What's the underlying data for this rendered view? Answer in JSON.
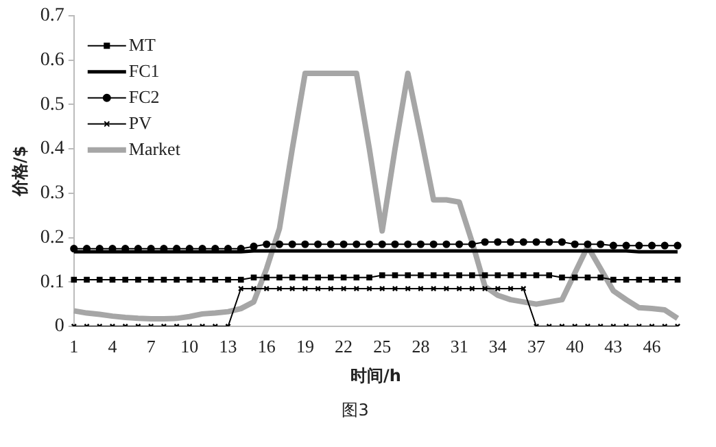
{
  "chart_data": {
    "type": "line",
    "xlabel": "时间/h",
    "ylabel": "价格/$",
    "annotations": [
      "图3"
    ],
    "categories": [
      "1",
      null,
      null,
      "4",
      null,
      null,
      "7",
      null,
      null,
      "10",
      null,
      null,
      "13",
      null,
      null,
      "16",
      null,
      null,
      "19",
      null,
      null,
      "22",
      null,
      null,
      "25",
      null,
      null,
      "28",
      null,
      null,
      "31",
      null,
      null,
      "34",
      null,
      null,
      "37",
      null,
      null,
      "40",
      null,
      null,
      "43",
      null,
      null,
      "46",
      null,
      null
    ],
    "ylim": [
      0,
      0.7
    ],
    "yticks": [
      0,
      0.1,
      0.2,
      0.3,
      0.4,
      0.5,
      0.6,
      0.7
    ],
    "grid": false,
    "legend": "top left",
    "series": [
      {
        "name": "MT",
        "color": "#000000",
        "marker": "square",
        "values": [
          0.105,
          0.105,
          0.105,
          0.105,
          0.105,
          0.105,
          0.105,
          0.105,
          0.105,
          0.105,
          0.105,
          0.105,
          0.105,
          0.105,
          0.11,
          0.11,
          0.11,
          0.11,
          0.11,
          0.11,
          0.11,
          0.11,
          0.11,
          0.11,
          0.115,
          0.115,
          0.115,
          0.115,
          0.115,
          0.115,
          0.115,
          0.115,
          0.115,
          0.115,
          0.115,
          0.115,
          0.115,
          0.115,
          0.11,
          0.11,
          0.11,
          0.11,
          0.105,
          0.105,
          0.105,
          0.105,
          0.105,
          0.105
        ]
      },
      {
        "name": "FC1",
        "color": "#000000",
        "marker": "none",
        "values": [
          0.168,
          0.168,
          0.168,
          0.168,
          0.168,
          0.168,
          0.168,
          0.168,
          0.168,
          0.168,
          0.168,
          0.168,
          0.168,
          0.168,
          0.17,
          0.17,
          0.17,
          0.17,
          0.17,
          0.17,
          0.17,
          0.17,
          0.17,
          0.17,
          0.17,
          0.17,
          0.17,
          0.17,
          0.17,
          0.17,
          0.17,
          0.17,
          0.17,
          0.17,
          0.17,
          0.17,
          0.17,
          0.17,
          0.17,
          0.17,
          0.17,
          0.17,
          0.17,
          0.17,
          0.168,
          0.168,
          0.168,
          0.168
        ]
      },
      {
        "name": "FC2",
        "color": "#000000",
        "marker": "circle",
        "values": [
          0.175,
          0.175,
          0.175,
          0.175,
          0.175,
          0.175,
          0.175,
          0.175,
          0.175,
          0.175,
          0.175,
          0.175,
          0.175,
          0.175,
          0.18,
          0.185,
          0.185,
          0.185,
          0.185,
          0.185,
          0.185,
          0.185,
          0.185,
          0.185,
          0.185,
          0.185,
          0.185,
          0.185,
          0.185,
          0.185,
          0.185,
          0.185,
          0.19,
          0.19,
          0.19,
          0.19,
          0.19,
          0.19,
          0.19,
          0.185,
          0.185,
          0.185,
          0.182,
          0.182,
          0.182,
          0.182,
          0.182,
          0.182
        ]
      },
      {
        "name": "PV",
        "color": "#000000",
        "marker": "cross",
        "values": [
          0,
          0,
          0,
          0,
          0,
          0,
          0,
          0,
          0,
          0,
          0,
          0,
          0,
          0.085,
          0.085,
          0.085,
          0.085,
          0.085,
          0.085,
          0.085,
          0.085,
          0.085,
          0.085,
          0.085,
          0.085,
          0.085,
          0.085,
          0.085,
          0.085,
          0.085,
          0.085,
          0.085,
          0.085,
          0.085,
          0.085,
          0.085,
          0,
          0,
          0,
          0,
          0,
          0,
          0,
          0,
          0,
          0,
          0,
          0
        ]
      },
      {
        "name": "Market",
        "color": "#a6a6a6",
        "marker": "none",
        "values": [
          0.035,
          0.03,
          0.027,
          0.023,
          0.02,
          0.018,
          0.017,
          0.017,
          0.018,
          0.022,
          0.028,
          0.03,
          0.033,
          0.04,
          0.055,
          0.13,
          0.22,
          0.4,
          0.57,
          0.57,
          0.57,
          0.57,
          0.57,
          0.4,
          0.215,
          0.4,
          0.57,
          0.43,
          0.285,
          0.285,
          0.28,
          0.19,
          0.09,
          0.07,
          0.06,
          0.055,
          0.05,
          0.055,
          0.06,
          0.12,
          0.18,
          0.13,
          0.08,
          0.06,
          0.042,
          0.04,
          0.037,
          0.018
        ]
      }
    ]
  }
}
